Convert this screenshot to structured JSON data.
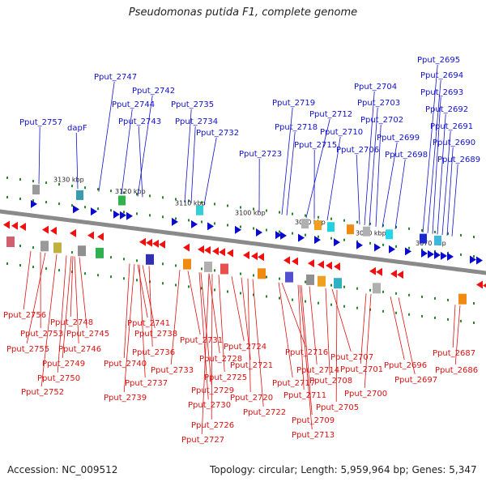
{
  "title": "Pseudomonas putida F1, complete genome",
  "accession_text": "Accession: NC_009512",
  "summary_text": "Topology: circular; Length: 5,959,964 bp; Genes: 5,347",
  "colors": {
    "forward_gene": "#0a0acd",
    "reverse_gene": "#ee1111",
    "forward_label": "#1010cc",
    "reverse_label": "#dd1111",
    "backbone": "#8a8a8a",
    "tick": "#22882a"
  },
  "scale_ticks": [
    "3130 kbp",
    "3120 kbp",
    "3110 kbp",
    "3100 kbp",
    "3090 kbp",
    "3080 kbp",
    "3070 kbp"
  ],
  "forward_labels": [
    "Pput_2757",
    "dapF",
    "Pput_2747",
    "Pput_2744",
    "Pput_2742",
    "Pput_2743",
    "Pput_2735",
    "Pput_2734",
    "Pput_2732",
    "Pput_2723",
    "Pput_2719",
    "Pput_2718",
    "Pput_2712",
    "Pput_2715",
    "Pput_2710",
    "Pput_2704",
    "Pput_2706",
    "Pput_2703",
    "Pput_2702",
    "Pput_2699",
    "Pput_2698",
    "Pput_2695",
    "Pput_2694",
    "Pput_2693",
    "Pput_2692",
    "Pput_2691",
    "Pput_2690",
    "Pput_2689"
  ],
  "reverse_labels": [
    "Pput_2756",
    "Pput_2753",
    "Pput_2755",
    "Pput_2748",
    "Pput_2745",
    "Pput_2746",
    "Pput_2749",
    "Pput_2750",
    "Pput_2752",
    "Pput_2741",
    "Pput_2738",
    "Pput_2740",
    "Pput_2736",
    "Pput_2737",
    "Pput_2739",
    "Pput_2731",
    "Pput_2733",
    "Pput_2728",
    "Pput_2729",
    "Pput_2730",
    "Pput_2724",
    "Pput_2725",
    "Pput_2726",
    "Pput_2727",
    "Pput_2721",
    "Pput_2720",
    "Pput_2722",
    "Pput_2716",
    "Pput_2717",
    "Pput_2714",
    "Pput_2713",
    "Pput_2711",
    "Pput_2709",
    "Pput_2707",
    "Pput_2708",
    "Pput_2705",
    "Pput_2701",
    "Pput_2700",
    "Pput_2696",
    "Pput_2697",
    "Pput_2687",
    "Pput_2686"
  ]
}
